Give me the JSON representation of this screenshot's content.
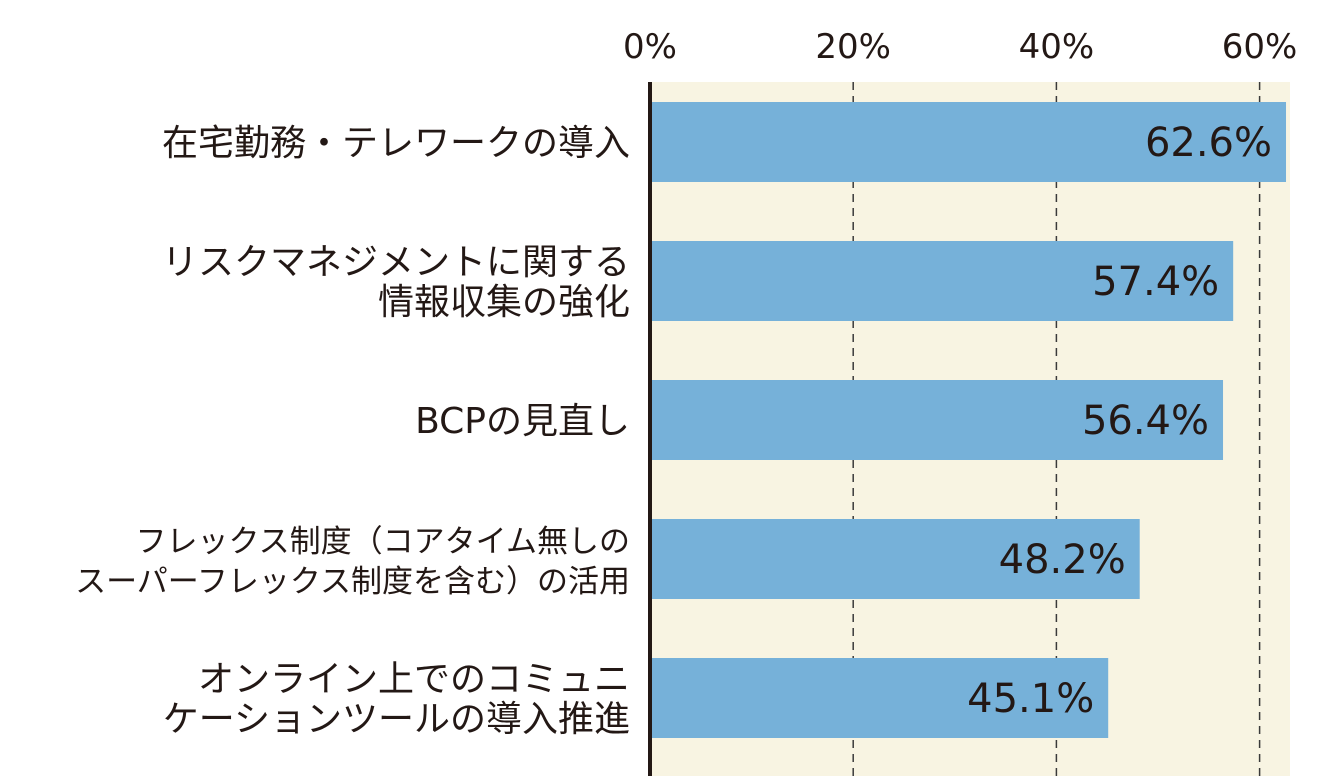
{
  "chart_data": {
    "type": "bar",
    "orientation": "horizontal",
    "categories": [
      [
        "在宅勤務・テレワークの導入"
      ],
      [
        "リスクマネジメントに関する",
        "情報収集の強化"
      ],
      [
        "BCPの見直し"
      ],
      [
        "フレックス制度（コアタイム無しの",
        "スーパーフレックス制度を含む）の活用"
      ],
      [
        "オンライン上でのコミュニ",
        "ケーションツールの導入推進"
      ]
    ],
    "values": [
      62.6,
      57.4,
      56.4,
      48.2,
      45.1
    ],
    "value_labels": [
      "62.6%",
      "57.4%",
      "56.4%",
      "48.2%",
      "45.1%"
    ],
    "xlim": [
      0,
      63
    ],
    "ticks": [
      0,
      20,
      40,
      60
    ],
    "tick_labels": [
      "0%",
      "20%",
      "40%",
      "60%"
    ],
    "grid": "dashed-vertical",
    "colors": {
      "bar": "#76b1d9",
      "plot_background": "#f8f4e2",
      "axis": "#231815",
      "grid": "#3a3a3a",
      "text": "#231815"
    }
  }
}
